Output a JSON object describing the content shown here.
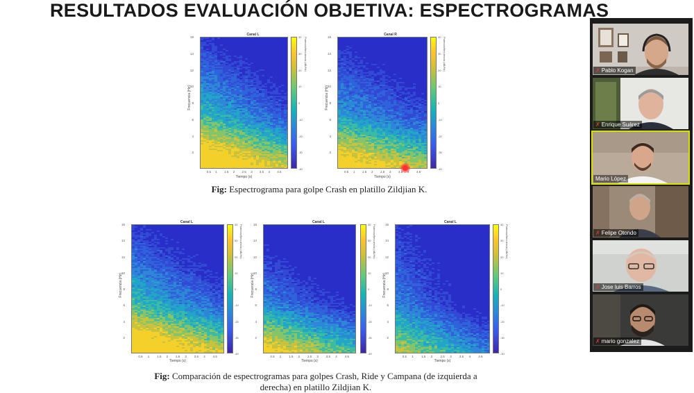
{
  "slide": {
    "title": "RESULTADOS EVALUACIÓN OBJETIVA: ESPECTROGRAMAS",
    "caption1_bold": "Fig:",
    "caption1_text": " Espectrograma para golpe Crash en platillo Zildjian K.",
    "caption2_bold": "Fig:",
    "caption2_line1": " Comparación de espectrogramas para golpes Crash, Ride y Campana (de izquierda a",
    "caption2_line2": "derecha) en platillo Zildjian K."
  },
  "spectrograms": [
    {
      "title": "Canal L",
      "xlabel": "Tiempo (s)",
      "ylabel": "Frecuencia (Hz)",
      "cbar_label": "Potencia/frecuencia (dB/Hz)"
    },
    {
      "title": "Canal R",
      "xlabel": "Tiempo (s)",
      "ylabel": "Frecuencia (Hz)",
      "cbar_label": "Potencia/frecuencia (dB/Hz)"
    },
    {
      "title": "Canal L",
      "xlabel": "Tiempo (s)",
      "ylabel": "Frecuencia (Hz)",
      "cbar_label": "Potencia/frecuencia (dB/Hz)"
    },
    {
      "title": "Canal L",
      "xlabel": "Tiempo (s)",
      "ylabel": "Frecuencia (Hz)",
      "cbar_label": "Potencia/frecuencia (dB/Hz)"
    },
    {
      "title": "Canal L",
      "xlabel": "Tiempo (s)",
      "ylabel": "Frecuencia (Hz)",
      "cbar_label": "Potencia/frecuencia (dB/Hz)"
    }
  ],
  "axes": {
    "x_ticks": [
      "0.5",
      "1",
      "1.5",
      "2",
      "2.5",
      "3",
      "3.5",
      "4",
      "4.5"
    ],
    "y_ticks": [
      "16",
      "14",
      "12",
      "10",
      "8",
      "6",
      "4",
      "2"
    ],
    "cbar_ticks": [
      "40",
      "30",
      "20",
      "10",
      "0",
      "-10",
      "-20",
      "-30",
      "-40"
    ]
  },
  "participants": [
    {
      "name": "Pablo Kogan",
      "muted": true
    },
    {
      "name": "Enrique Suárez",
      "muted": true
    },
    {
      "name": "Mario López",
      "muted": false,
      "active_speaker": true
    },
    {
      "name": "Felipe Otondo",
      "muted": true
    },
    {
      "name": "Jose luis Barros",
      "muted": true
    },
    {
      "name": "mario gonzalez",
      "muted": true
    }
  ],
  "icons": {
    "muted": "mic-muted-icon"
  },
  "colors": {
    "speaker_highlight": "#d7e000",
    "muted_icon": "#e53935",
    "pointer": "#ff3030"
  }
}
